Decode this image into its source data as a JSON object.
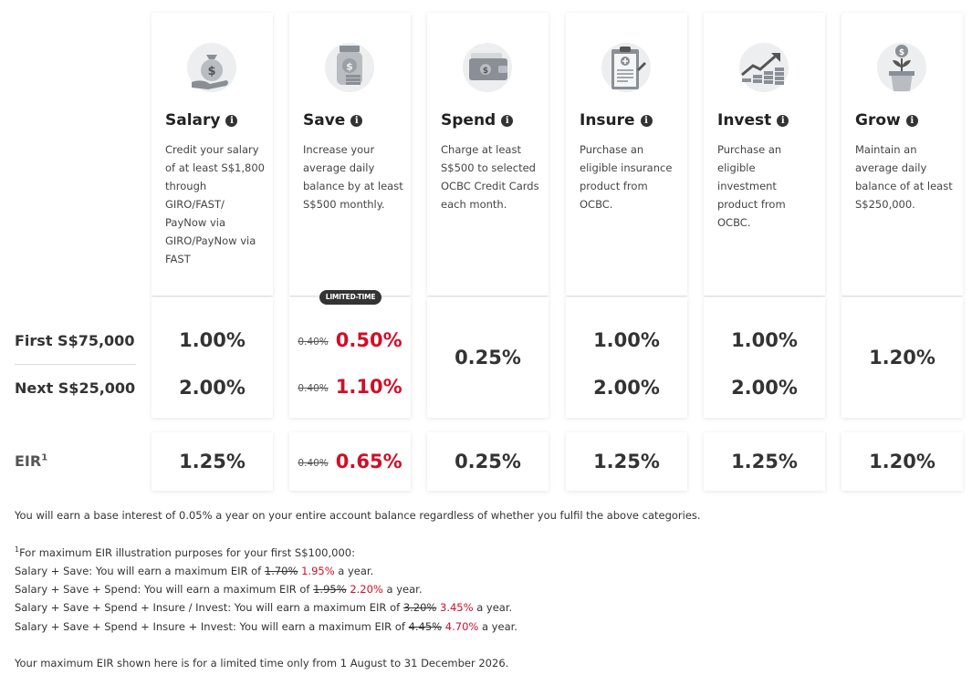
{
  "categories": [
    {
      "icon": "money-bag-hand-icon",
      "title": "Salary",
      "desc": "Credit your salary of at least S$1,800 through GIRO/FAST/ PayNow via GIRO/PayNow via FAST"
    },
    {
      "icon": "savings-jar-icon",
      "title": "Save",
      "desc": "Increase your average daily balance by at least S$500 monthly."
    },
    {
      "icon": "wallet-card-icon",
      "title": "Spend",
      "desc": "Charge at least S$500 to selected OCBC Credit Cards each month."
    },
    {
      "icon": "insurance-clipboard-icon",
      "title": "Insure",
      "desc": "Purchase an eligible insurance product from OCBC."
    },
    {
      "icon": "investment-chart-icon",
      "title": "Invest",
      "desc": "Purchase an eligible investment product from OCBC."
    },
    {
      "icon": "growing-plant-icon",
      "title": "Grow",
      "desc": "Maintain an average daily balance of at least S$250,000."
    }
  ],
  "info_symbol": "i",
  "badge": "LIMITED-TIME",
  "rows": {
    "first": "First S$75,000",
    "next": "Next S$25,000",
    "eir": "EIR",
    "eir_sup": "1"
  },
  "rates": {
    "salary": {
      "first": "1.00%",
      "next": "2.00%",
      "eir": "1.25%"
    },
    "save": {
      "first_old": "0.40%",
      "first": "0.50%",
      "next_old": "0.40%",
      "next": "1.10%",
      "eir_old": "0.40%",
      "eir": "0.65%"
    },
    "spend": {
      "combined": "0.25%",
      "eir": "0.25%"
    },
    "insure": {
      "first": "1.00%",
      "next": "2.00%",
      "eir": "1.25%"
    },
    "invest": {
      "first": "1.00%",
      "next": "2.00%",
      "eir": "1.25%"
    },
    "grow": {
      "combined": "1.20%",
      "eir": "1.20%"
    }
  },
  "notes": {
    "base": "You will earn a base interest of 0.05% a year on your entire account balance regardless of whether you fulfil the above categories.",
    "footnote_sup": "1",
    "footnote_intro": "For maximum EIR illustration purposes for your first S$100,000:",
    "lines": [
      {
        "prefix": "Salary + Save: You will earn a maximum EIR of ",
        "old": "1.70%",
        "new": "1.95%",
        "suffix": " a year."
      },
      {
        "prefix": "Salary + Save + Spend: You will earn a maximum EIR of ",
        "old": "1.95%",
        "new": "2.20%",
        "suffix": " a year."
      },
      {
        "prefix": "Salary + Save + Spend + Insure / Invest: You will earn a maximum EIR of ",
        "old": "3.20%",
        "new": "3.45%",
        "suffix": " a year."
      },
      {
        "prefix": "Salary + Save + Spend + Insure + Invest: You will earn a maximum EIR of ",
        "old": "4.45%",
        "new": "4.70%",
        "suffix": " a year."
      }
    ],
    "limited": "Your maximum EIR shown here is for a limited time only from 1 August to 31 December 2026."
  },
  "colors": {
    "accent_red": "#d00f27",
    "text_dark": "#333333",
    "icon_grey": "#8a8f96",
    "icon_bg": "#eceef0"
  }
}
